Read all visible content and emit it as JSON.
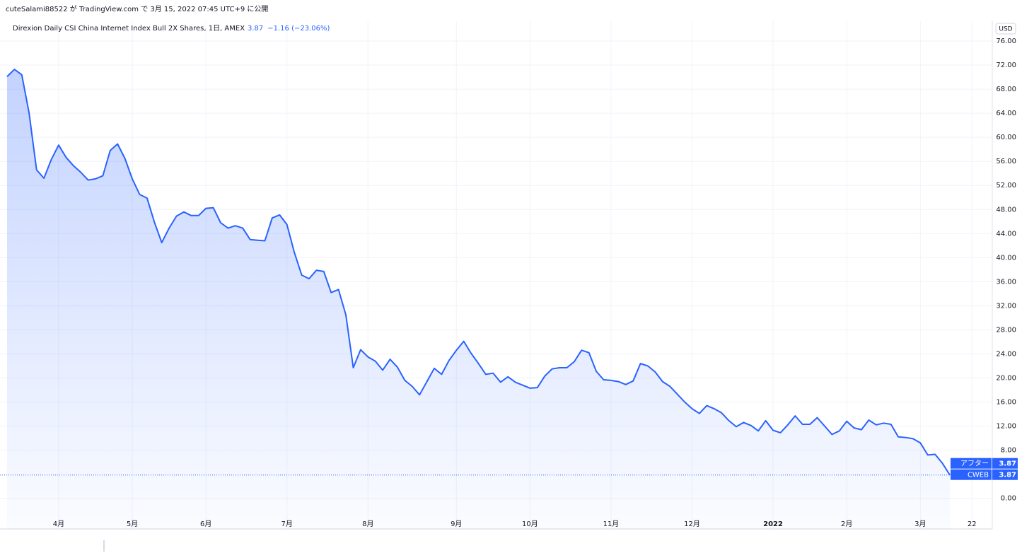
{
  "header": "cuteSalami88522 が TradingView.com で 3月 15, 2022 07:45 UTC+9 に公開",
  "chart_data": {
    "type": "area",
    "title": "Direxion Daily CSI China Internet Index Bull 2X Shares, 1日, AMEX",
    "last_value": "3.87",
    "change": "−1.16 (−23.06%)",
    "currency": "USD",
    "color": "#2962ff",
    "grid": true,
    "categories": [
      null,
      null,
      null,
      null,
      null,
      null,
      null,
      "4月",
      null,
      null,
      null,
      null,
      null,
      null,
      null,
      null,
      null,
      "5月",
      null,
      null,
      null,
      null,
      null,
      null,
      null,
      null,
      null,
      "6月",
      null,
      null,
      null,
      null,
      null,
      null,
      null,
      null,
      null,
      null,
      "7月",
      null,
      null,
      null,
      null,
      null,
      null,
      null,
      null,
      null,
      null,
      "8月",
      null,
      null,
      null,
      null,
      null,
      null,
      null,
      null,
      null,
      null,
      null,
      "9月",
      null,
      null,
      null,
      null,
      null,
      null,
      null,
      null,
      null,
      "10月",
      null,
      null,
      null,
      null,
      null,
      null,
      null,
      null,
      null,
      null,
      "11月",
      null,
      null,
      null,
      null,
      null,
      null,
      null,
      null,
      null,
      null,
      "12月",
      null,
      null,
      null,
      null,
      null,
      null,
      null,
      null,
      null,
      null,
      "2022",
      null,
      null,
      null,
      null,
      null,
      null,
      null,
      null,
      null,
      "2月",
      null,
      null,
      null,
      null,
      null,
      null,
      null,
      null,
      null,
      "3月",
      null,
      null,
      null,
      null,
      null,
      null,
      "22",
      null,
      null
    ],
    "values": [
      70.1,
      71.3,
      70.4,
      64.0,
      54.6,
      53.2,
      56.3,
      58.7,
      56.7,
      55.3,
      54.2,
      52.9,
      53.1,
      53.6,
      57.8,
      58.9,
      56.5,
      53.1,
      50.5,
      49.9,
      45.9,
      42.5,
      44.9,
      46.9,
      47.6,
      47.0,
      47.0,
      48.2,
      48.3,
      45.8,
      44.9,
      45.3,
      44.9,
      43.0,
      42.9,
      42.8,
      46.6,
      47.1,
      45.5,
      40.9,
      37.1,
      36.5,
      37.9,
      37.7,
      34.2,
      34.7,
      30.5,
      21.7,
      24.7,
      23.5,
      22.8,
      21.3,
      23.1,
      21.8,
      19.6,
      18.6,
      17.2,
      19.4,
      21.6,
      20.6,
      22.9,
      24.6,
      26.1,
      24.1,
      22.4,
      20.6,
      20.8,
      19.3,
      20.2,
      19.3,
      18.8,
      18.3,
      18.4,
      20.3,
      21.5,
      21.7,
      21.7,
      22.7,
      24.6,
      24.2,
      21.1,
      19.7,
      19.6,
      19.4,
      18.9,
      19.5,
      22.4,
      22.0,
      21.0,
      19.4,
      18.6,
      17.3,
      16.0,
      14.9,
      14.1,
      15.4,
      14.9,
      14.2,
      12.9,
      11.9,
      12.6,
      12.1,
      11.2,
      12.9,
      11.3,
      10.9,
      12.2,
      13.7,
      12.3,
      12.3,
      13.4,
      12.0,
      10.6,
      11.2,
      12.8,
      11.7,
      11.4,
      13.0,
      12.2,
      12.5,
      12.3,
      10.2,
      10.1,
      9.9,
      9.2,
      7.2,
      7.3,
      5.8,
      3.87,
      null,
      null,
      null,
      null,
      null
    ],
    "ylim": [
      -5.1,
      79.3
    ],
    "yticks": [
      {
        "value": 0,
        "label": "0.00"
      },
      {
        "value": 8,
        "label": "8.00"
      },
      {
        "value": 12,
        "label": "12.00"
      },
      {
        "value": 16,
        "label": "16.00"
      },
      {
        "value": 20,
        "label": "20.00"
      },
      {
        "value": 24,
        "label": "24.00"
      },
      {
        "value": 28,
        "label": "28.00"
      },
      {
        "value": 32,
        "label": "32.00"
      },
      {
        "value": 36,
        "label": "36.00"
      },
      {
        "value": 40,
        "label": "40.00"
      },
      {
        "value": 44,
        "label": "44.00"
      },
      {
        "value": 48,
        "label": "48.00"
      },
      {
        "value": 52,
        "label": "52.00"
      },
      {
        "value": 56,
        "label": "56.00"
      },
      {
        "value": 60,
        "label": "60.00"
      },
      {
        "value": 64,
        "label": "64.00"
      },
      {
        "value": 68,
        "label": "68.00"
      },
      {
        "value": 72,
        "label": "72.00"
      },
      {
        "value": 76,
        "label": "76.00"
      }
    ],
    "price_tags": [
      {
        "name": "アフター",
        "value": 3.87
      },
      {
        "name": "CWEB",
        "value": 3.87
      }
    ]
  }
}
